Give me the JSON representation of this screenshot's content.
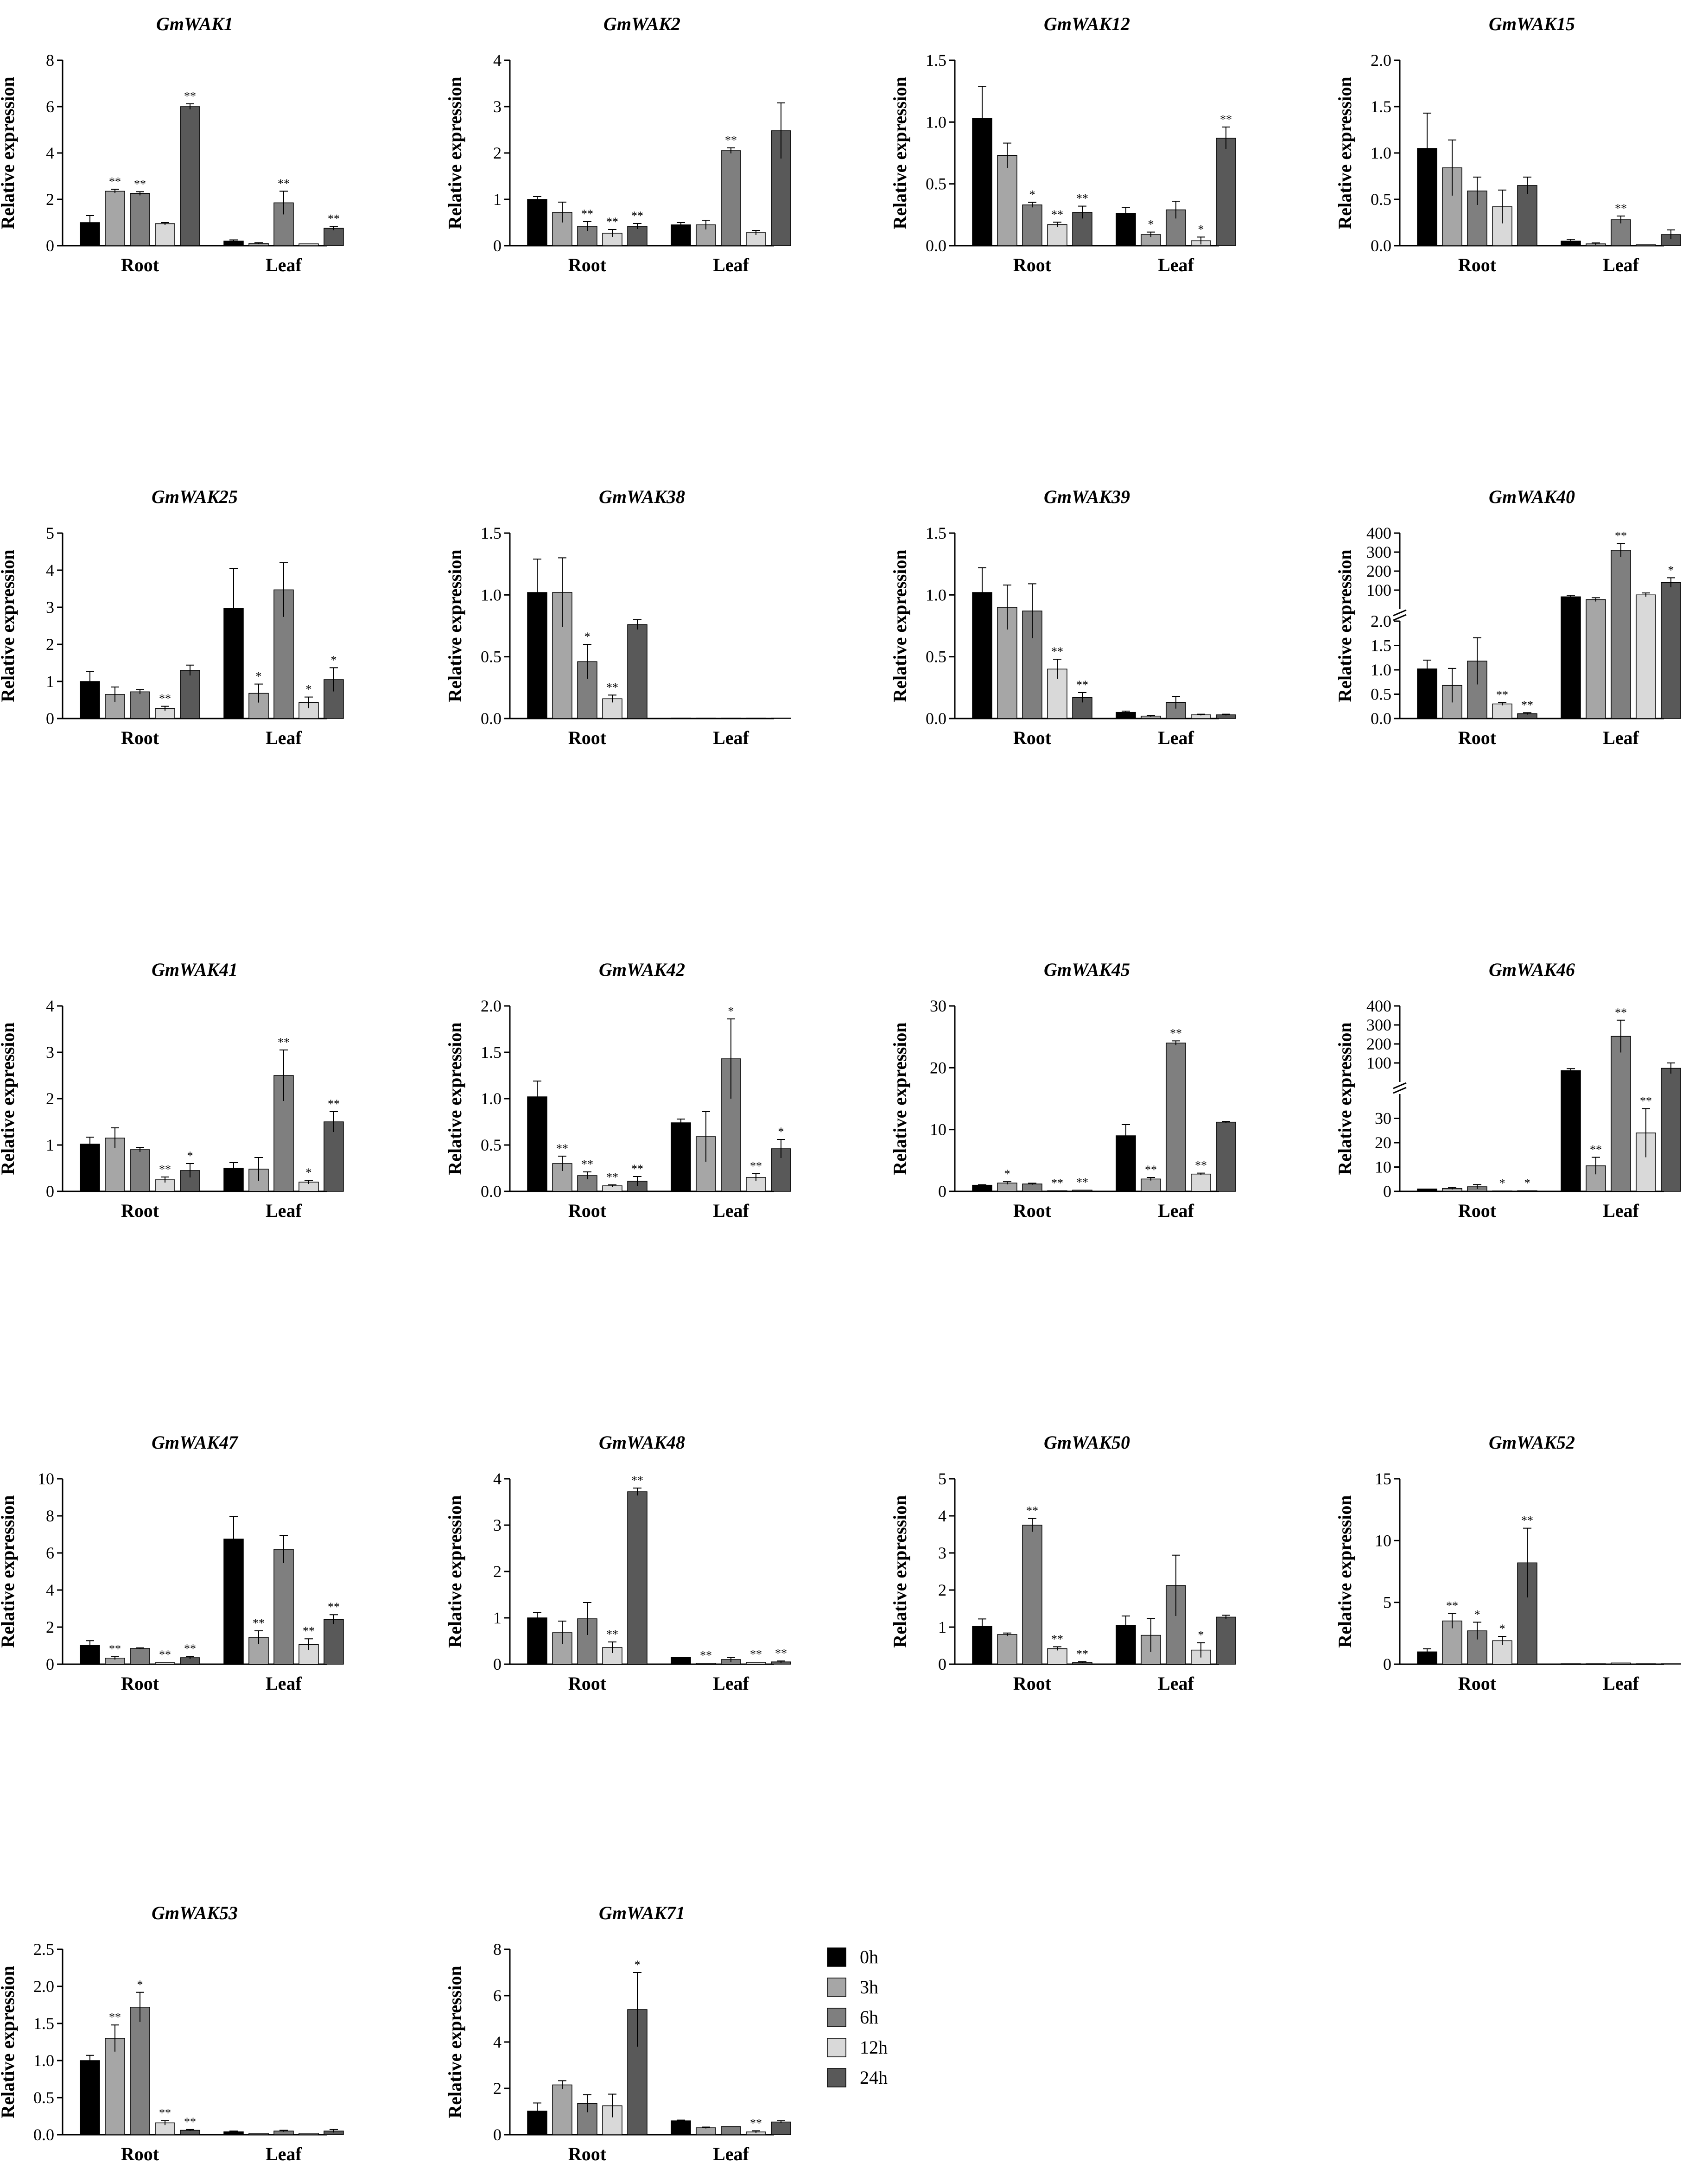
{
  "ylabel": "Relative expression",
  "groups": [
    "Root",
    "Leaf"
  ],
  "legend": [
    {
      "label": "0h",
      "color": "#000000"
    },
    {
      "label": "3h",
      "color": "#a6a6a6"
    },
    {
      "label": "6h",
      "color": "#7f7f7f"
    },
    {
      "label": "12h",
      "color": "#d9d9d9"
    },
    {
      "label": "24h",
      "color": "#595959"
    }
  ],
  "chart_data": [
    {
      "type": "bar",
      "title": "GmWAK1",
      "ylim": [
        0,
        8
      ],
      "yticks": [
        0,
        2,
        4,
        6,
        8
      ],
      "values": [
        [
          1.0,
          2.35,
          2.25,
          0.95,
          6.0
        ],
        [
          0.2,
          0.1,
          1.85,
          0.08,
          0.75
        ]
      ],
      "errors": [
        [
          0.3,
          0.08,
          0.08,
          0.05,
          0.12
        ],
        [
          0.05,
          0.03,
          0.5,
          0.02,
          0.08
        ]
      ],
      "stars": [
        [
          "",
          "**",
          "**",
          "",
          "**"
        ],
        [
          "",
          "",
          "**",
          "",
          "**"
        ]
      ]
    },
    {
      "type": "bar",
      "title": "GmWAK2",
      "ylim": [
        0,
        4
      ],
      "yticks": [
        0,
        1,
        2,
        3,
        4
      ],
      "values": [
        [
          1.0,
          0.72,
          0.42,
          0.27,
          0.42
        ],
        [
          0.45,
          0.45,
          2.05,
          0.28,
          2.48
        ]
      ],
      "errors": [
        [
          0.06,
          0.22,
          0.1,
          0.08,
          0.06
        ],
        [
          0.05,
          0.1,
          0.06,
          0.05,
          0.6
        ]
      ],
      "stars": [
        [
          "",
          "",
          "**",
          "**",
          "**"
        ],
        [
          "",
          "",
          "**",
          "",
          ""
        ]
      ]
    },
    {
      "type": "bar",
      "title": "GmWAK12",
      "ylim": [
        0,
        1.5
      ],
      "yticks": [
        "0.0",
        "0.5",
        "1.0",
        "1.5"
      ],
      "values": [
        [
          1.03,
          0.73,
          0.33,
          0.17,
          0.27
        ],
        [
          0.26,
          0.09,
          0.29,
          0.04,
          0.87
        ]
      ],
      "errors": [
        [
          0.26,
          0.1,
          0.02,
          0.02,
          0.05
        ],
        [
          0.05,
          0.02,
          0.07,
          0.03,
          0.09
        ]
      ],
      "stars": [
        [
          "",
          "",
          "*",
          "**",
          "**"
        ],
        [
          "",
          "*",
          "",
          "*",
          "**"
        ]
      ]
    },
    {
      "type": "bar",
      "title": "GmWAK15",
      "ylim": [
        0,
        2
      ],
      "yticks": [
        "0.0",
        "0.5",
        "1.0",
        "1.5",
        "2.0"
      ],
      "values": [
        [
          1.05,
          0.84,
          0.59,
          0.42,
          0.65
        ],
        [
          0.05,
          0.02,
          0.28,
          0.01,
          0.12
        ]
      ],
      "errors": [
        [
          0.38,
          0.3,
          0.15,
          0.18,
          0.09
        ],
        [
          0.02,
          0.01,
          0.04,
          0.005,
          0.05
        ]
      ],
      "stars": [
        [
          "",
          "",
          "",
          "",
          ""
        ],
        [
          "",
          "",
          "**",
          "",
          ""
        ]
      ]
    },
    {
      "type": "bar",
      "title": "GmWAK25",
      "ylim": [
        0,
        5
      ],
      "yticks": [
        0,
        1,
        2,
        3,
        4,
        5
      ],
      "values": [
        [
          1.0,
          0.65,
          0.72,
          0.27,
          1.3
        ],
        [
          2.97,
          0.68,
          3.47,
          0.43,
          1.05
        ]
      ],
      "errors": [
        [
          0.27,
          0.2,
          0.06,
          0.06,
          0.14
        ],
        [
          1.08,
          0.25,
          0.73,
          0.15,
          0.32
        ]
      ],
      "stars": [
        [
          "",
          "",
          "",
          "**",
          ""
        ],
        [
          "",
          "*",
          "",
          "*",
          "*"
        ]
      ]
    },
    {
      "type": "bar",
      "title": "GmWAK38",
      "ylim": [
        0,
        1.5
      ],
      "yticks": [
        "0.0",
        "0.5",
        "1.0",
        "1.5"
      ],
      "values": [
        [
          1.02,
          1.02,
          0.46,
          0.16,
          0.76
        ],
        [
          0.004,
          0.003,
          0.003,
          0.002,
          0.002
        ]
      ],
      "errors": [
        [
          0.27,
          0.28,
          0.14,
          0.03,
          0.04
        ],
        [
          0.001,
          0.001,
          0.001,
          0.001,
          0.001
        ]
      ],
      "stars": [
        [
          "",
          "",
          "*",
          "**",
          ""
        ],
        [
          "",
          "",
          "",
          "",
          ""
        ]
      ]
    },
    {
      "type": "bar",
      "title": "GmWAK39",
      "ylim": [
        0,
        1.5
      ],
      "yticks": [
        "0.0",
        "0.5",
        "1.0",
        "1.5"
      ],
      "values": [
        [
          1.02,
          0.9,
          0.87,
          0.4,
          0.17
        ],
        [
          0.05,
          0.02,
          0.13,
          0.03,
          0.03
        ]
      ],
      "errors": [
        [
          0.2,
          0.18,
          0.22,
          0.08,
          0.04
        ],
        [
          0.01,
          0.005,
          0.05,
          0.005,
          0.005
        ]
      ],
      "stars": [
        [
          "",
          "",
          "",
          "**",
          "**"
        ],
        [
          "",
          "",
          "",
          "",
          ""
        ]
      ]
    },
    {
      "type": "bar",
      "title": "GmWAK40",
      "broken": true,
      "lower": {
        "max": 2.0,
        "ticks": [
          "0.0",
          "0.5",
          "1.0",
          "1.5",
          "2.0"
        ]
      },
      "upper": {
        "min": 0,
        "max": 400,
        "ticks": [
          100,
          200,
          300,
          400
        ]
      },
      "values": [
        [
          1.02,
          0.68,
          1.18,
          0.3,
          0.1
        ],
        [
          65,
          50,
          310,
          75,
          140
        ]
      ],
      "errors": [
        [
          0.18,
          0.35,
          0.48,
          0.03,
          0.02
        ],
        [
          8,
          10,
          35,
          10,
          25
        ]
      ],
      "stars": [
        [
          "",
          "",
          "",
          "**",
          "**"
        ],
        [
          "",
          "",
          "**",
          "",
          "*"
        ]
      ]
    },
    {
      "type": "bar",
      "title": "GmWAK41",
      "ylim": [
        0,
        4
      ],
      "yticks": [
        0,
        1,
        2,
        3,
        4
      ],
      "values": [
        [
          1.02,
          1.15,
          0.9,
          0.25,
          0.45
        ],
        [
          0.5,
          0.48,
          2.5,
          0.2,
          1.5
        ]
      ],
      "errors": [
        [
          0.15,
          0.22,
          0.05,
          0.06,
          0.15
        ],
        [
          0.12,
          0.25,
          0.55,
          0.04,
          0.22
        ]
      ],
      "stars": [
        [
          "",
          "",
          "",
          "**",
          "*"
        ],
        [
          "",
          "",
          "**",
          "*",
          "**"
        ]
      ]
    },
    {
      "type": "bar",
      "title": "GmWAK42",
      "ylim": [
        0,
        2
      ],
      "yticks": [
        "0.0",
        "0.5",
        "1.0",
        "1.5",
        "2.0"
      ],
      "values": [
        [
          1.02,
          0.3,
          0.17,
          0.06,
          0.11
        ],
        [
          0.74,
          0.59,
          1.43,
          0.15,
          0.46
        ]
      ],
      "errors": [
        [
          0.17,
          0.08,
          0.04,
          0.01,
          0.05
        ],
        [
          0.04,
          0.27,
          0.43,
          0.04,
          0.1
        ]
      ],
      "stars": [
        [
          "",
          "**",
          "**",
          "**",
          "**"
        ],
        [
          "",
          "",
          "*",
          "**",
          "*"
        ]
      ]
    },
    {
      "type": "bar",
      "title": "GmWAK45",
      "ylim": [
        0,
        30
      ],
      "yticks": [
        0,
        10,
        20,
        30
      ],
      "values": [
        [
          1.0,
          1.35,
          1.2,
          0.1,
          0.2
        ],
        [
          9.0,
          2.0,
          24.0,
          2.8,
          11.2
        ]
      ],
      "errors": [
        [
          0.08,
          0.22,
          0.12,
          0.02,
          0.03
        ],
        [
          1.8,
          0.25,
          0.35,
          0.15,
          0.12
        ]
      ],
      "stars": [
        [
          "",
          "*",
          "",
          "**",
          "**"
        ],
        [
          "",
          "**",
          "**",
          "**",
          ""
        ]
      ]
    },
    {
      "type": "bar",
      "title": "GmWAK46",
      "broken": true,
      "lower": {
        "max": 40,
        "ticks": [
          0,
          10,
          20,
          30
        ]
      },
      "upper": {
        "min": 0,
        "max": 400,
        "ticks": [
          100,
          200,
          300,
          400
        ]
      },
      "values": [
        [
          1.0,
          1.2,
          1.9,
          0.15,
          0.25
        ],
        [
          60,
          10.5,
          240,
          24,
          72
        ]
      ],
      "errors": [
        [
          0.15,
          0.4,
          0.9,
          0.05,
          0.05
        ],
        [
          10,
          3.5,
          85,
          10,
          28
        ]
      ],
      "stars": [
        [
          "",
          "",
          "",
          "*",
          "*"
        ],
        [
          "",
          "**",
          "**",
          "**",
          ""
        ]
      ]
    },
    {
      "type": "bar",
      "title": "GmWAK47",
      "ylim": [
        0,
        10
      ],
      "yticks": [
        0,
        2,
        4,
        6,
        8,
        10
      ],
      "values": [
        [
          1.02,
          0.33,
          0.85,
          0.08,
          0.35
        ],
        [
          6.75,
          1.45,
          6.2,
          1.07,
          2.42
        ]
      ],
      "errors": [
        [
          0.25,
          0.08,
          0.03,
          0.02,
          0.07
        ],
        [
          1.22,
          0.35,
          0.75,
          0.3,
          0.25
        ]
      ],
      "stars": [
        [
          "",
          "**",
          "",
          "**",
          "**"
        ],
        [
          "",
          "**",
          "",
          "**",
          "**"
        ]
      ]
    },
    {
      "type": "bar",
      "title": "GmWAK48",
      "ylim": [
        0,
        4
      ],
      "yticks": [
        0,
        1,
        2,
        3,
        4
      ],
      "values": [
        [
          1.0,
          0.68,
          0.98,
          0.36,
          3.72
        ],
        [
          0.15,
          0.02,
          0.1,
          0.04,
          0.05
        ]
      ],
      "errors": [
        [
          0.12,
          0.25,
          0.35,
          0.12,
          0.08
        ],
        [
          0.01,
          0.005,
          0.05,
          0.01,
          0.02
        ]
      ],
      "stars": [
        [
          "",
          "",
          "",
          "**",
          "**"
        ],
        [
          "",
          "**",
          "",
          "**",
          "**"
        ]
      ]
    },
    {
      "type": "bar",
      "title": "GmWAK50",
      "ylim": [
        0,
        5
      ],
      "yticks": [
        0,
        1,
        2,
        3,
        4,
        5
      ],
      "values": [
        [
          1.02,
          0.8,
          3.75,
          0.42,
          0.05
        ],
        [
          1.05,
          0.78,
          2.12,
          0.38,
          1.27
        ]
      ],
      "errors": [
        [
          0.2,
          0.04,
          0.18,
          0.05,
          0.02
        ],
        [
          0.25,
          0.45,
          0.82,
          0.2,
          0.05
        ]
      ],
      "stars": [
        [
          "",
          "",
          "**",
          "**",
          "**"
        ],
        [
          "",
          "",
          "",
          "*",
          ""
        ]
      ]
    },
    {
      "type": "bar",
      "title": "GmWAK52",
      "ylim": [
        0,
        15
      ],
      "yticks": [
        0,
        5,
        10,
        15
      ],
      "values": [
        [
          1.0,
          3.5,
          2.7,
          1.9,
          8.2
        ],
        [
          0.02,
          0.02,
          0.1,
          0.02,
          0.02
        ]
      ],
      "errors": [
        [
          0.25,
          0.6,
          0.7,
          0.35,
          2.8
        ],
        [
          0.005,
          0.005,
          0.03,
          0.005,
          0.005
        ]
      ],
      "stars": [
        [
          "",
          "**",
          "*",
          "*",
          "**"
        ],
        [
          "",
          "",
          "",
          "",
          ""
        ]
      ]
    },
    {
      "type": "bar",
      "title": "GmWAK53",
      "ylim": [
        0,
        2.5
      ],
      "yticks": [
        "0.0",
        "0.5",
        "1.0",
        "1.5",
        "2.0",
        "2.5"
      ],
      "values": [
        [
          1.0,
          1.3,
          1.72,
          0.16,
          0.06
        ],
        [
          0.04,
          0.02,
          0.05,
          0.02,
          0.05
        ]
      ],
      "errors": [
        [
          0.07,
          0.18,
          0.2,
          0.03,
          0.01
        ],
        [
          0.01,
          0.005,
          0.01,
          0.005,
          0.02
        ]
      ],
      "stars": [
        [
          "",
          "**",
          "*",
          "**",
          "**"
        ],
        [
          "",
          "",
          "",
          "",
          ""
        ]
      ]
    },
    {
      "type": "bar",
      "title": "GmWAK71",
      "ylim": [
        0,
        8
      ],
      "yticks": [
        0,
        2,
        4,
        6,
        8
      ],
      "values": [
        [
          1.02,
          2.15,
          1.35,
          1.25,
          5.4
        ],
        [
          0.6,
          0.3,
          0.35,
          0.12,
          0.55
        ]
      ],
      "errors": [
        [
          0.35,
          0.18,
          0.38,
          0.5,
          1.6
        ],
        [
          0.03,
          0.03,
          0.02,
          0.05,
          0.05
        ]
      ],
      "stars": [
        [
          "",
          "",
          "",
          "",
          "*"
        ],
        [
          "",
          "",
          "",
          "**",
          ""
        ]
      ]
    }
  ]
}
